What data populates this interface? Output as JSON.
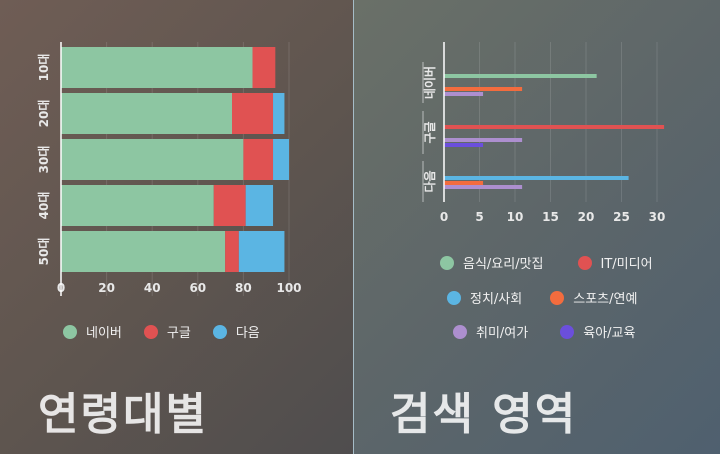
{
  "colors": {
    "naver": "#8dc6a2",
    "google": "#e05252",
    "daum": "#5bb5e3",
    "music_food": "#8dc6a2",
    "it_media": "#e05252",
    "politics_society": "#5bb5e3",
    "sports_entertainment": "#f36c3e",
    "hobby_leisure": "#ad8fcf",
    "parenting_education": "#6b4fdc"
  },
  "left": {
    "title": "연령대별",
    "legend": [
      {
        "label": "네이버",
        "color": "#8dc6a2"
      },
      {
        "label": "구글",
        "color": "#e05252"
      },
      {
        "label": "다음",
        "color": "#5bb5e3"
      }
    ]
  },
  "right": {
    "title": "검색 영역",
    "legend": [
      {
        "label": "음식/요리/맛집",
        "color": "#8dc6a2"
      },
      {
        "label": "IT/미디어",
        "color": "#e05252"
      },
      {
        "label": "정치/사회",
        "color": "#5bb5e3"
      },
      {
        "label": "스포츠/연예",
        "color": "#f36c3e"
      },
      {
        "label": "취미/여가",
        "color": "#ad8fcf"
      },
      {
        "label": "육아/교육",
        "color": "#6b4fdc"
      }
    ]
  },
  "chart_data": [
    {
      "type": "bar",
      "orientation": "horizontal",
      "stacked": true,
      "categories": [
        "10대",
        "20대",
        "30대",
        "40대",
        "50대"
      ],
      "series": [
        {
          "name": "네이버",
          "values": [
            84,
            75,
            80,
            67,
            72
          ]
        },
        {
          "name": "구글",
          "values": [
            10,
            18,
            13,
            14,
            6
          ]
        },
        {
          "name": "다음",
          "values": [
            0,
            5,
            7,
            12,
            20
          ]
        }
      ],
      "xlim": [
        0,
        100
      ],
      "xticks": [
        0,
        20,
        40,
        60,
        80,
        100
      ],
      "grid": true,
      "legend_position": "bottom"
    },
    {
      "type": "bar",
      "orientation": "horizontal",
      "stacked": false,
      "categories": [
        "네이버",
        "구글",
        "다음"
      ],
      "series": [
        {
          "name": "음식/요리/맛집",
          "values": [
            21.5,
            0,
            0
          ]
        },
        {
          "name": "IT/미디어",
          "values": [
            0,
            31,
            0
          ]
        },
        {
          "name": "정치/사회",
          "values": [
            0,
            0,
            26
          ]
        },
        {
          "name": "스포츠/연예",
          "values": [
            11,
            0,
            5.5
          ]
        },
        {
          "name": "취미/여가",
          "values": [
            5.5,
            11,
            11
          ]
        },
        {
          "name": "육아/교육",
          "values": [
            0,
            5.5,
            0
          ]
        }
      ],
      "xlim": [
        0,
        31
      ],
      "xticks": [
        0,
        5,
        10,
        15,
        20,
        25,
        30
      ],
      "grid": true,
      "legend_position": "bottom"
    }
  ]
}
